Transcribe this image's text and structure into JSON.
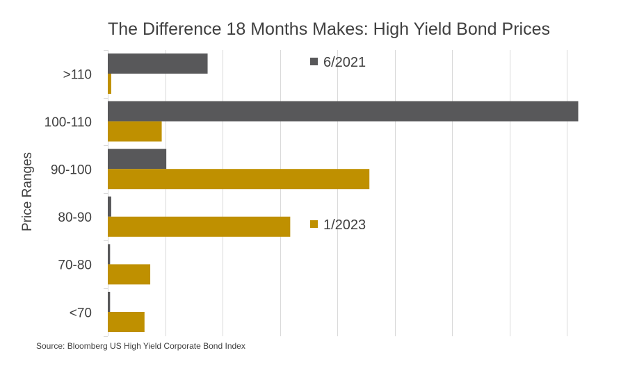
{
  "chart_data": {
    "type": "bar",
    "orientation": "horizontal",
    "title": "The Difference 18 Months Makes: High Yield Bond Prices",
    "ylabel": "Price Ranges",
    "xlabel": "",
    "categories": [
      ">110",
      "100-110",
      "90-100",
      "80-90",
      "70-80",
      "<70"
    ],
    "series": [
      {
        "name": "6/2021",
        "color": "#58585a",
        "values": [
          8.7,
          41.0,
          5.1,
          0.3,
          0.2,
          0.2
        ]
      },
      {
        "name": "1/2023",
        "color": "#bf9000",
        "values": [
          0.3,
          4.7,
          22.8,
          15.9,
          3.7,
          3.2
        ]
      }
    ],
    "xlim": [
      0,
      44
    ],
    "grid_step": 5,
    "grid": true,
    "legend": "inline"
  },
  "source": "Source: Bloomberg US High Yield Corporate Bond Index"
}
